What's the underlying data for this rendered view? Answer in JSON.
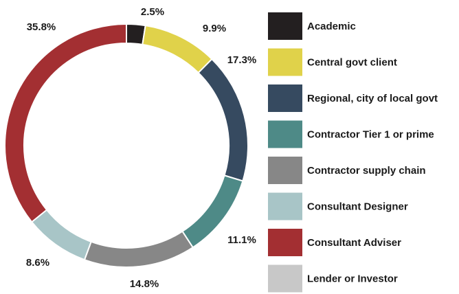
{
  "chart_data": {
    "type": "donut",
    "categories": [
      "Academic",
      "Central govt client",
      "Regional, city of local govt",
      "Contractor Tier 1 or prime",
      "Contractor supply chain",
      "Consultant Designer",
      "Consultant Adviser",
      "Lender or Investor"
    ],
    "values": [
      2.5,
      9.9,
      17.3,
      11.1,
      14.8,
      8.6,
      35.8,
      0
    ],
    "value_labels": [
      "2.5%",
      "9.9%",
      "17.3%",
      "11.1%",
      "14.8%",
      "8.6%",
      "35.8%",
      null
    ],
    "colors": [
      "#231f20",
      "#e0d24a",
      "#364a60",
      "#4e8a87",
      "#878787",
      "#a8c5c7",
      "#a32f32",
      "#c8c8c8"
    ],
    "legend": "right"
  }
}
